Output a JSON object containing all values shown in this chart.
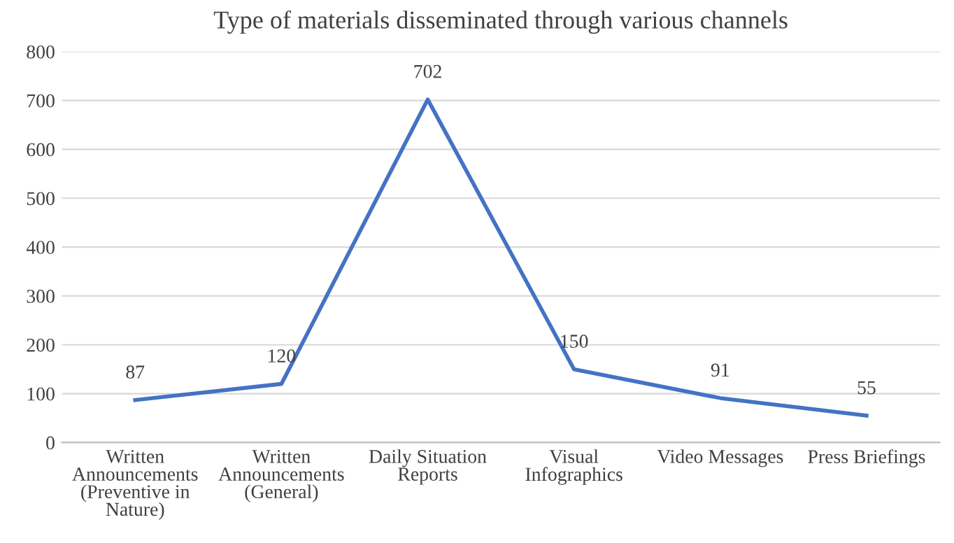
{
  "chart_data": {
    "type": "line",
    "title": "Type of materials disseminated through various channels",
    "categories": [
      "Written\nAnnouncements\n(Preventive in\nNature)",
      "Written\nAnnouncements\n(General)",
      "Daily Situation\nReports",
      "Visual\nInfographics",
      "Video Messages",
      "Press Briefings"
    ],
    "values": [
      87,
      120,
      702,
      150,
      91,
      55
    ],
    "color": "#4472c4",
    "data_labels": true,
    "marker": "none",
    "line_style": "solid",
    "ylim": [
      0,
      800
    ],
    "yticks": [
      0,
      100,
      200,
      300,
      400,
      500,
      600,
      700,
      800
    ],
    "grid": "y",
    "legend": false
  }
}
